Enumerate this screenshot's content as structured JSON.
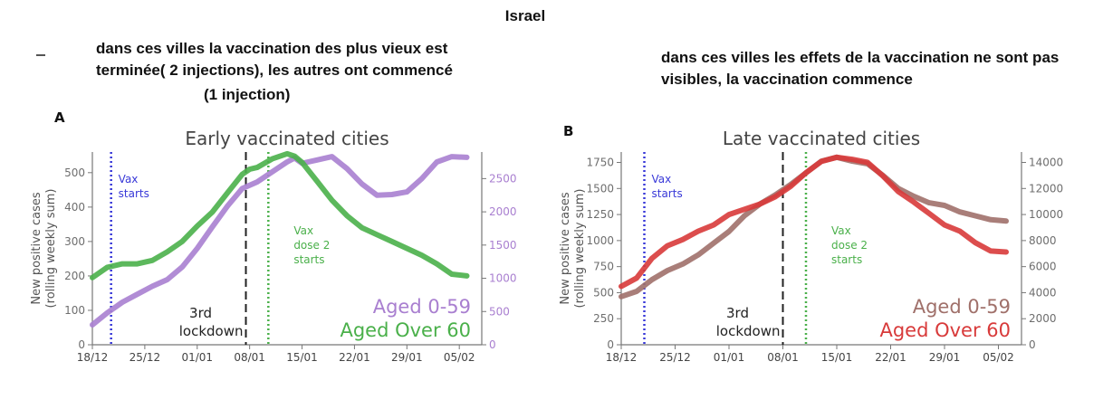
{
  "header": {
    "country": "Israel",
    "note_left": "dans ces villes la vaccination des plus vieux est terminée( 2 injections), les autres ont commencé",
    "note_left_extra": "(1 injection)",
    "note_right": "dans ces villes les effets de la vaccination ne sont pas visibles, la vaccination commence"
  },
  "chart_data": [
    {
      "panel": "A",
      "type": "line",
      "title": "Early vaccinated cities",
      "ylabel": "New positive cases\n(rolling weekly sum)",
      "ylim": [
        0,
        560
      ],
      "yticks": [
        0,
        100,
        200,
        300,
        400,
        500
      ],
      "y2lim": [
        0,
        2900
      ],
      "y2ticks": [
        0,
        500,
        1000,
        1500,
        2000,
        2500
      ],
      "xlim": [
        0,
        52
      ],
      "xtick_labels": [
        "18/12",
        "25/12",
        "01/01",
        "08/01",
        "15/01",
        "22/01",
        "29/01",
        "05/02"
      ],
      "xtick_positions": [
        0,
        7,
        14,
        21,
        28,
        35,
        42,
        49
      ],
      "colors": {
        "young": "#a97fd0",
        "old": "#4ab04a"
      },
      "legend": [
        "Aged 0-59",
        "Aged Over 60"
      ],
      "annotations": [
        {
          "text": "Vax starts",
          "x": 2.5,
          "color": "#3838d8"
        },
        {
          "text": "3rd lockdown",
          "x": 20.5,
          "color": "#222222"
        },
        {
          "text": "Vax dose 2 starts",
          "x": 23.5,
          "color": "#4ab04a"
        }
      ],
      "series": [
        {
          "axis": "right",
          "x": [
            0,
            2,
            4,
            6,
            8,
            10,
            12,
            14,
            16,
            18,
            20,
            22,
            24,
            26,
            27,
            28,
            30,
            32,
            34,
            36,
            38,
            40,
            42,
            44,
            46,
            48,
            50
          ],
          "values": [
            300,
            480,
            640,
            760,
            880,
            980,
            1170,
            1450,
            1770,
            2080,
            2350,
            2450,
            2600,
            2750,
            2810,
            2730,
            2780,
            2830,
            2650,
            2420,
            2250,
            2260,
            2300,
            2500,
            2750,
            2830,
            2820
          ]
        },
        {
          "axis": "left",
          "x": [
            0,
            2,
            4,
            6,
            8,
            10,
            12,
            14,
            16,
            18,
            20,
            21,
            22,
            24,
            26,
            27,
            28,
            30,
            32,
            34,
            36,
            38,
            40,
            42,
            44,
            46,
            48,
            50
          ],
          "values": [
            195,
            225,
            235,
            235,
            245,
            270,
            300,
            345,
            385,
            440,
            495,
            510,
            515,
            540,
            555,
            548,
            530,
            475,
            420,
            375,
            340,
            320,
            300,
            280,
            260,
            235,
            205,
            200
          ]
        }
      ]
    },
    {
      "panel": "B",
      "type": "line",
      "title": "Late vaccinated cities",
      "ylabel": "New positive cases\n(rolling weekly sum)",
      "ylim": [
        0,
        1850
      ],
      "yticks": [
        0,
        250,
        500,
        750,
        1000,
        1250,
        1500,
        1750
      ],
      "y2lim": [
        0,
        14800
      ],
      "y2ticks": [
        0,
        2000,
        4000,
        6000,
        8000,
        10000,
        12000,
        14000
      ],
      "xlim": [
        0,
        52
      ],
      "xtick_labels": [
        "18/12",
        "25/12",
        "01/01",
        "08/01",
        "15/01",
        "22/01",
        "29/01",
        "05/02"
      ],
      "xtick_positions": [
        0,
        7,
        14,
        21,
        28,
        35,
        42,
        49
      ],
      "colors": {
        "young": "#a0706a",
        "old": "#d83a3a"
      },
      "legend": [
        "Aged 0-59",
        "Aged Over 60"
      ],
      "annotations": [
        {
          "text": "Vax starts",
          "x": 3,
          "color": "#3838d8"
        },
        {
          "text": "3rd lockdown",
          "x": 21,
          "color": "#222222"
        },
        {
          "text": "Vax dose 2 starts",
          "x": 24,
          "color": "#4ab04a"
        }
      ],
      "series": [
        {
          "axis": "right",
          "x": [
            0,
            2,
            4,
            6,
            8,
            10,
            12,
            14,
            16,
            18,
            20,
            22,
            24,
            26,
            28,
            30,
            32,
            34,
            36,
            38,
            40,
            42,
            44,
            46,
            48,
            50
          ],
          "values": [
            3700,
            4100,
            5000,
            5700,
            6200,
            6900,
            7800,
            8700,
            9900,
            10800,
            11500,
            12300,
            13200,
            14100,
            14400,
            14100,
            13900,
            13000,
            12000,
            11400,
            10900,
            10700,
            10200,
            9900,
            9600,
            9500
          ]
        },
        {
          "axis": "left",
          "x": [
            0,
            2,
            4,
            6,
            8,
            10,
            12,
            14,
            16,
            18,
            20,
            22,
            24,
            26,
            28,
            30,
            32,
            34,
            36,
            38,
            40,
            42,
            44,
            46,
            48,
            50
          ],
          "values": [
            560,
            640,
            830,
            950,
            1010,
            1090,
            1150,
            1250,
            1300,
            1350,
            1420,
            1520,
            1650,
            1760,
            1800,
            1780,
            1750,
            1620,
            1470,
            1370,
            1260,
            1150,
            1090,
            980,
            900,
            890
          ]
        }
      ]
    }
  ]
}
